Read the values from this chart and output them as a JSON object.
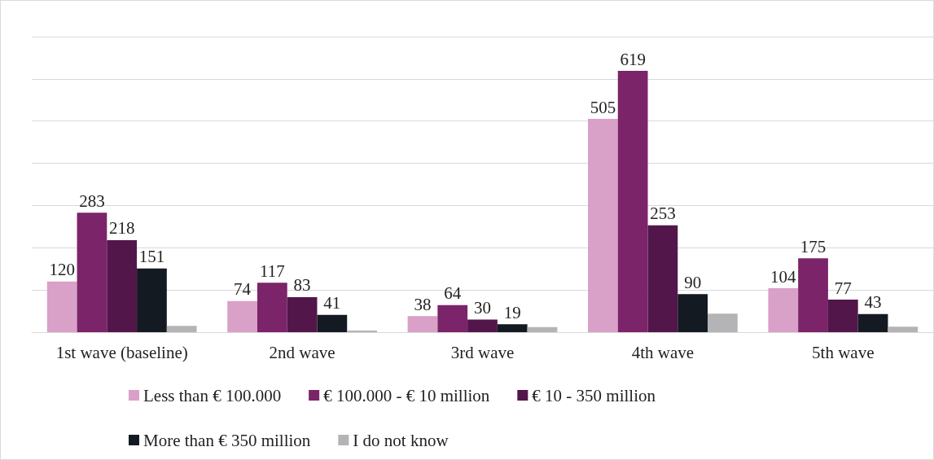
{
  "chart_data": {
    "type": "bar",
    "categories": [
      "1st wave (baseline)",
      "2nd wave",
      "3rd wave",
      "4th wave",
      "5th wave"
    ],
    "series": [
      {
        "name": "Less than € 100.000",
        "color": "#d9a0c8",
        "values": [
          120,
          74,
          38,
          505,
          104
        ],
        "value_labels": [
          "120",
          "74",
          "38",
          "505",
          "104"
        ]
      },
      {
        "name": "€ 100.000 - € 10 million",
        "color": "#7b2469",
        "values": [
          283,
          117,
          64,
          619,
          175
        ],
        "value_labels": [
          "283",
          "117",
          "64",
          "619",
          "175"
        ]
      },
      {
        "name": "€ 10 - 350 million",
        "color": "#52164a",
        "values": [
          218,
          83,
          30,
          253,
          77
        ],
        "value_labels": [
          "218",
          "83",
          "30",
          "253",
          "77"
        ]
      },
      {
        "name": "More than € 350 million",
        "color": "#141a22",
        "values": [
          151,
          41,
          19,
          90,
          43
        ],
        "value_labels": [
          "151",
          "41",
          "19",
          "90",
          "43"
        ]
      },
      {
        "name": "I do not know",
        "color": "#b4b4b6",
        "values": [
          15,
          4,
          12,
          44,
          13
        ],
        "value_labels": [
          null,
          null,
          null,
          null,
          null
        ]
      }
    ],
    "ylim": [
      0,
      700
    ],
    "yticks": [
      {
        "value": 0,
        "label": null
      },
      {
        "value": 100,
        "label": null
      },
      {
        "value": 200,
        "label": null
      },
      {
        "value": 300,
        "label": null
      },
      {
        "value": 400,
        "label": null
      },
      {
        "value": 500,
        "label": null
      },
      {
        "value": 600,
        "label": null
      },
      {
        "value": 700,
        "label": null
      }
    ],
    "tick_labels": "x",
    "grid": "y",
    "legend": "bottom"
  }
}
